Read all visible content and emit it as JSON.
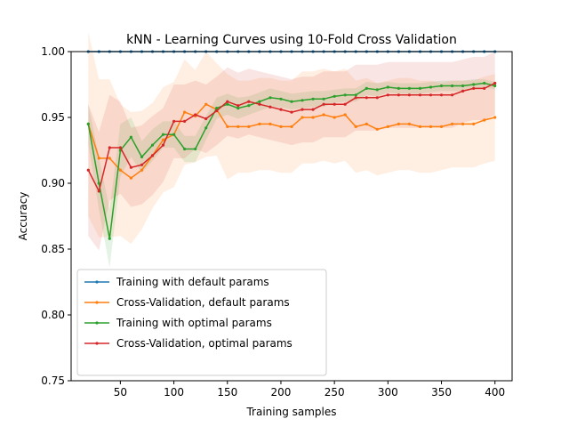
{
  "chart_data": {
    "type": "line",
    "title": "kNN - Learning Curves using 10-Fold Cross Validation",
    "xlabel": "Training samples",
    "ylabel": "Accuracy",
    "xlim": [
      4,
      416
    ],
    "ylim": [
      0.75,
      1.0
    ],
    "xticks": [
      50,
      100,
      150,
      200,
      250,
      300,
      350,
      400
    ],
    "xtick_labels": [
      "50",
      "100",
      "150",
      "200",
      "250",
      "300",
      "350",
      "400"
    ],
    "yticks": [
      0.75,
      0.8,
      0.85,
      0.9,
      0.95,
      1.0
    ],
    "ytick_labels": [
      "0.75",
      "0.80",
      "0.85",
      "0.90",
      "0.95",
      "1.00"
    ],
    "grid": false,
    "legend_position": "lower-left",
    "x": [
      20,
      30,
      40,
      50,
      60,
      70,
      80,
      90,
      100,
      110,
      120,
      130,
      140,
      150,
      160,
      170,
      180,
      190,
      200,
      210,
      220,
      230,
      240,
      250,
      260,
      270,
      280,
      290,
      300,
      310,
      320,
      330,
      340,
      350,
      360,
      370,
      380,
      390,
      400
    ],
    "series": [
      {
        "name": "Training with default params",
        "color": "#1f77b4",
        "values": [
          1.0,
          1.0,
          1.0,
          1.0,
          1.0,
          1.0,
          1.0,
          1.0,
          1.0,
          1.0,
          1.0,
          1.0,
          1.0,
          1.0,
          1.0,
          1.0,
          1.0,
          1.0,
          1.0,
          1.0,
          1.0,
          1.0,
          1.0,
          1.0,
          1.0,
          1.0,
          1.0,
          1.0,
          1.0,
          1.0,
          1.0,
          1.0,
          1.0,
          1.0,
          1.0,
          1.0,
          1.0,
          1.0,
          1.0
        ],
        "band": null
      },
      {
        "name": "Cross-Validation, default params",
        "color": "#ff7f0e",
        "values": [
          0.945,
          0.919,
          0.919,
          0.91,
          0.904,
          0.91,
          0.921,
          0.933,
          0.937,
          0.954,
          0.951,
          0.96,
          0.956,
          0.943,
          0.943,
          0.943,
          0.945,
          0.945,
          0.943,
          0.943,
          0.95,
          0.95,
          0.952,
          0.95,
          0.952,
          0.943,
          0.945,
          0.941,
          0.943,
          0.945,
          0.945,
          0.943,
          0.943,
          0.943,
          0.945,
          0.945,
          0.945,
          0.948,
          0.95
        ],
        "band": [
          0.07,
          0.06,
          0.06,
          0.05,
          0.05,
          0.045,
          0.04,
          0.04,
          0.04,
          0.04,
          0.035,
          0.04,
          0.035,
          0.04,
          0.035,
          0.035,
          0.035,
          0.035,
          0.035,
          0.035,
          0.035,
          0.035,
          0.035,
          0.035,
          0.035,
          0.035,
          0.035,
          0.035,
          0.035,
          0.035,
          0.035,
          0.035,
          0.035,
          0.033,
          0.033,
          0.033,
          0.033,
          0.033,
          0.033
        ]
      },
      {
        "name": "Training with optimal params",
        "color": "#2ca02c",
        "values": [
          0.945,
          0.9,
          0.858,
          0.925,
          0.935,
          0.92,
          0.929,
          0.937,
          0.937,
          0.926,
          0.926,
          0.942,
          0.957,
          0.96,
          0.957,
          0.959,
          0.962,
          0.965,
          0.964,
          0.962,
          0.963,
          0.964,
          0.964,
          0.966,
          0.967,
          0.967,
          0.972,
          0.971,
          0.973,
          0.972,
          0.972,
          0.972,
          0.973,
          0.974,
          0.974,
          0.974,
          0.975,
          0.976,
          0.974
        ],
        "band": [
          0.015,
          0.02,
          0.022,
          0.02,
          0.015,
          0.012,
          0.012,
          0.01,
          0.01,
          0.01,
          0.01,
          0.009,
          0.008,
          0.008,
          0.008,
          0.007,
          0.007,
          0.007,
          0.006,
          0.006,
          0.006,
          0.006,
          0.006,
          0.005,
          0.005,
          0.005,
          0.005,
          0.005,
          0.004,
          0.004,
          0.004,
          0.004,
          0.004,
          0.004,
          0.004,
          0.004,
          0.004,
          0.003,
          0.003
        ]
      },
      {
        "name": "Cross-Validation, optimal params",
        "color": "#d62728",
        "values": [
          0.91,
          0.894,
          0.927,
          0.927,
          0.912,
          0.914,
          0.921,
          0.929,
          0.947,
          0.947,
          0.952,
          0.949,
          0.955,
          0.962,
          0.959,
          0.962,
          0.96,
          0.958,
          0.956,
          0.954,
          0.956,
          0.956,
          0.96,
          0.96,
          0.96,
          0.965,
          0.965,
          0.965,
          0.967,
          0.967,
          0.967,
          0.967,
          0.967,
          0.967,
          0.967,
          0.97,
          0.972,
          0.972,
          0.976
        ],
        "band": [
          0.05,
          0.045,
          0.04,
          0.035,
          0.03,
          0.03,
          0.03,
          0.028,
          0.028,
          0.028,
          0.026,
          0.026,
          0.026,
          0.026,
          0.025,
          0.025,
          0.025,
          0.025,
          0.025,
          0.025,
          0.025,
          0.025,
          0.025,
          0.025,
          0.025,
          0.025,
          0.025,
          0.025,
          0.025,
          0.025,
          0.025,
          0.025,
          0.025,
          0.025,
          0.025,
          0.024,
          0.024,
          0.024,
          0.024
        ]
      }
    ]
  }
}
